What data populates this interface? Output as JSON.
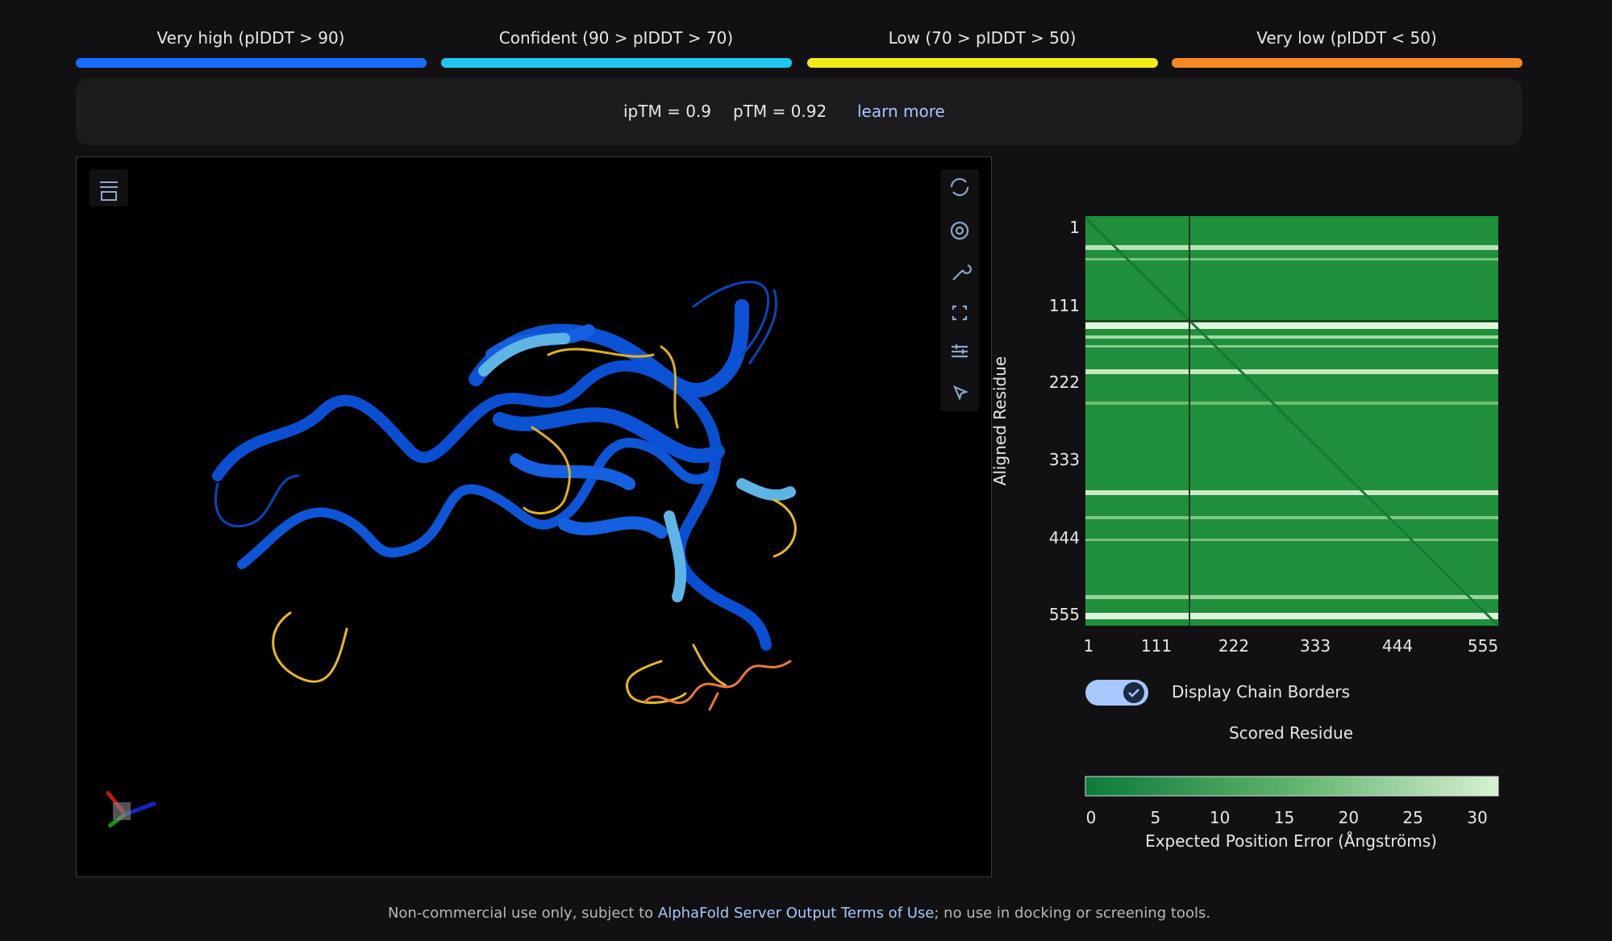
{
  "legend": [
    "Very high (pIDDT > 90)",
    "Confident (90 > pIDDT > 70)",
    "Low (70 > pIDDT > 50)",
    "Very low (pIDDT < 50)"
  ],
  "scores": {
    "iptm": "ipTM = 0.9",
    "ptm": "pTM = 0.92",
    "link": "learn more"
  },
  "pae": {
    "y_label": "Aligned Residue",
    "y_ticks": [
      "1",
      "111",
      "222",
      "333",
      "444",
      "555"
    ],
    "x_ticks": [
      "1",
      "111",
      "222",
      "333",
      "444",
      "555"
    ],
    "toggle_label": "Display Chain Borders",
    "x_label": "Scored Residue",
    "colorbar_ticks": [
      "0",
      "5",
      "10",
      "15",
      "20",
      "25",
      "30"
    ],
    "colorbar_label": "Expected Position Error (Ångströms)"
  },
  "footer": {
    "before": "Non-commercial use only, subject to ",
    "link": "AlphaFold Server Output Terms of Use",
    "after": "; no use in docking or screening tools."
  }
}
